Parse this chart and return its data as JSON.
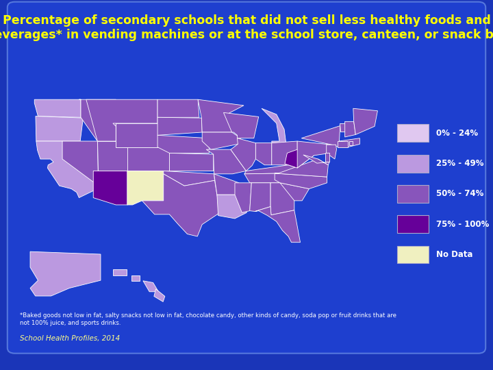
{
  "title_line1": "Percentage of secondary schools that did not sell less healthy foods and",
  "title_line2": "beverages* in vending machines or at the school store, canteen, or snack bar",
  "title_color": "#FFFF00",
  "title_fontsize": 12.5,
  "bg_color": "#1a35b8",
  "panel_color": "#1e3fcf",
  "footnote": "*Baked goods not low in fat, salty snacks not low in fat, chocolate candy, other kinds of candy, soda pop or fruit drinks that are\nnot 100% juice, and sports drinks.",
  "source": "School Health Profiles, 2014",
  "source_color": "#FFFF88",
  "footnote_color": "#ffffff",
  "legend_labels": [
    "0% - 24%",
    "25% - 49%",
    "50% - 74%",
    "75% - 100%",
    "No Data"
  ],
  "legend_colors": [
    "#e0c8f0",
    "#bb99e0",
    "#8855bb",
    "#660099",
    "#f0f0c0"
  ],
  "state_data": {
    "AL": "50% - 74%",
    "AK": "25% - 49%",
    "AZ": "75% - 100%",
    "AR": "50% - 74%",
    "CA": "25% - 49%",
    "CO": "50% - 74%",
    "CT": "50% - 74%",
    "DE": "50% - 74%",
    "FL": "50% - 74%",
    "GA": "50% - 74%",
    "HI": "25% - 49%",
    "ID": "50% - 74%",
    "IL": "50% - 74%",
    "IN": "50% - 74%",
    "IA": "50% - 74%",
    "KS": "50% - 74%",
    "KY": "50% - 74%",
    "LA": "25% - 49%",
    "ME": "50% - 74%",
    "MD": "50% - 74%",
    "MA": "50% - 74%",
    "MI": "25% - 49%",
    "MN": "50% - 74%",
    "MS": "50% - 74%",
    "MO": "50% - 74%",
    "MT": "50% - 74%",
    "NE": "50% - 74%",
    "NV": "50% - 74%",
    "NH": "50% - 74%",
    "NJ": "50% - 74%",
    "NM": "No Data",
    "NY": "50% - 74%",
    "NC": "50% - 74%",
    "ND": "50% - 74%",
    "OH": "50% - 74%",
    "OK": "50% - 74%",
    "OR": "25% - 49%",
    "PA": "50% - 74%",
    "RI": "50% - 74%",
    "SC": "50% - 74%",
    "SD": "50% - 74%",
    "TN": "50% - 74%",
    "TX": "50% - 74%",
    "UT": "50% - 74%",
    "VT": "50% - 74%",
    "VA": "50% - 74%",
    "WA": "25% - 49%",
    "WV": "75% - 100%",
    "WI": "50% - 74%",
    "WY": "50% - 74%"
  }
}
